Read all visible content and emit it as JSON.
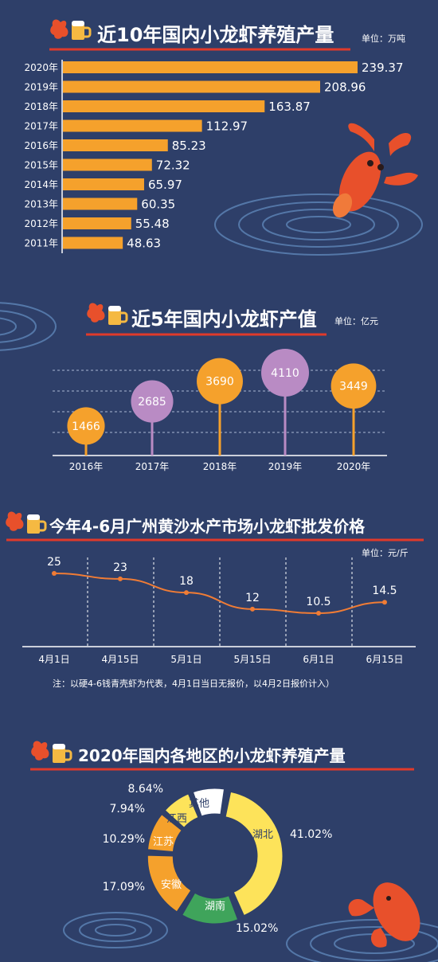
{
  "colors": {
    "background": "#2e3f69",
    "orange": "#f5a12c",
    "purple": "#b98bc4",
    "red_line": "#e03a2a",
    "green": "#3fa45b",
    "yellow": "#fde35a",
    "white": "#ffffff",
    "line": "#f07c35"
  },
  "icons": [
    "crayfish-icon",
    "beer-mug-icon"
  ],
  "chart_data": [
    {
      "type": "bar",
      "title": "近10年国内小龙虾养殖产量",
      "unit_label": "单位：万吨",
      "categories": [
        "2020年",
        "2019年",
        "2018年",
        "2017年",
        "2016年",
        "2015年",
        "2014年",
        "2013年",
        "2012年",
        "2011年"
      ],
      "values": [
        239.37,
        208.96,
        163.87,
        112.97,
        85.23,
        72.32,
        65.97,
        60.35,
        55.48,
        48.63
      ],
      "value_labels": [
        "239.37",
        "208.96",
        "163.87",
        "112.97",
        "85.23",
        "72.32",
        "65.97",
        "60.35",
        "55.48",
        "48.63"
      ],
      "orientation": "horizontal"
    },
    {
      "type": "scatter",
      "title": "近5年国内小龙虾产值",
      "unit_label": "单位：亿元",
      "categories": [
        "2016年",
        "2017年",
        "2018年",
        "2019年",
        "2020年"
      ],
      "values": [
        1466,
        2685,
        3690,
        4110,
        3449
      ],
      "value_labels": [
        "1466",
        "2685",
        "3690",
        "4110",
        "3449"
      ],
      "point_colors": [
        "#f5a12c",
        "#b98bc4",
        "#f5a12c",
        "#b98bc4",
        "#f5a12c"
      ]
    },
    {
      "type": "line",
      "title": "今年4-6月广州黄沙水产市场小龙虾批发价格",
      "unit_label": "单位：元/斤",
      "categories": [
        "4月1日",
        "4月15日",
        "5月1日",
        "5月15日",
        "6月1日",
        "6月15日"
      ],
      "values": [
        25,
        23,
        18,
        12,
        10.5,
        14.5
      ],
      "value_labels": [
        "25",
        "23",
        "18",
        "12",
        "10.5",
        "14.5"
      ],
      "note": "注：以硬4-6钱青壳虾为代表，4月1日当日无报价，以4月2日报价计入）"
    },
    {
      "type": "pie",
      "title": "2020年国内各地区的小龙虾养殖产量",
      "labels": [
        "湖北",
        "湖南",
        "安徽",
        "江苏",
        "江西",
        "其他"
      ],
      "values": [
        41.02,
        15.02,
        17.09,
        10.29,
        7.94,
        8.64
      ],
      "value_labels": [
        "41.02%",
        "15.02%",
        "17.09%",
        "10.29%",
        "7.94%",
        "8.64%"
      ],
      "slice_colors": [
        "#fde35a",
        "#3fa45b",
        "#f5a12c",
        "#f5a12c",
        "#fde35a",
        "#ffffff"
      ]
    }
  ]
}
